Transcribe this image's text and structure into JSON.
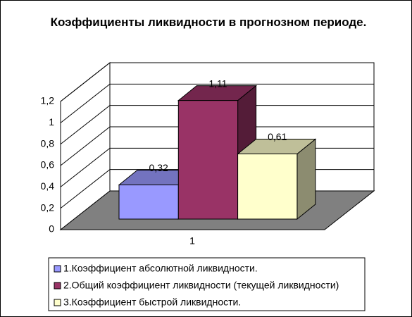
{
  "chart_data": {
    "type": "bar3d",
    "title": "Коэффициенты ликвидности в прогнозном периоде.",
    "categories": [
      "1"
    ],
    "series": [
      {
        "name": "1.Коэффициент абсолютной ликвидности.",
        "color": "#9999ff",
        "values": [
          0.32
        ],
        "value_labels": [
          "0,32"
        ]
      },
      {
        "name": "2.Общий коэффициент ликвидности (текущей ликвидности)",
        "color": "#993366",
        "values": [
          1.11
        ],
        "value_labels": [
          "1,11"
        ]
      },
      {
        "name": "3.Коэффициент быстрой ликвидности.",
        "color": "#ffffcc",
        "values": [
          0.61
        ],
        "value_labels": [
          "0,61"
        ]
      }
    ],
    "ylim": [
      0,
      1.2
    ],
    "yticks": [
      0,
      {
        "value": 0.2,
        "label": "0,2"
      },
      {
        "value": 0.4,
        "label": "0,4"
      },
      {
        "value": 0.6,
        "label": "0,6"
      },
      {
        "value": 0.8,
        "label": "0,8"
      },
      1,
      {
        "value": 1.2,
        "label": "1,2"
      }
    ],
    "grid": true,
    "legend_position": "bottom"
  }
}
